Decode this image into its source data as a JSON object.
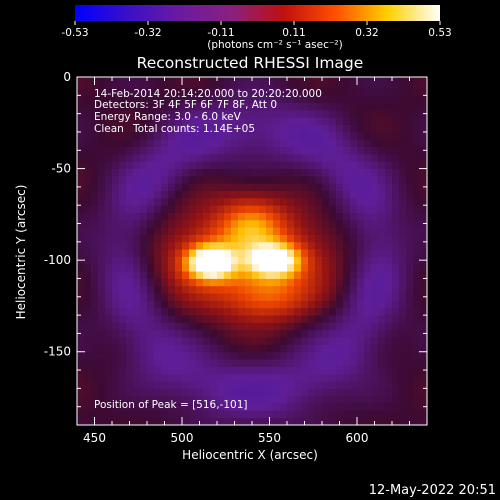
{
  "chart_data": {
    "type": "heatmap",
    "title": "Reconstructed RHESSI Image",
    "xlabel": "Heliocentric X (arcsec)",
    "ylabel": "Heliocentric Y (arcsec)",
    "xlim": [
      440,
      640
    ],
    "ylim": [
      -190,
      0
    ],
    "x_ticks": [
      450,
      500,
      550,
      600
    ],
    "y_ticks": [
      0,
      -50,
      -100,
      -150
    ],
    "colorbar": {
      "label": "(photons cm⁻² s⁻¹ asec⁻²)",
      "range": [
        -0.53,
        0.53
      ],
      "ticks": [
        "-0.53",
        "-0.32",
        "-0.11",
        "0.11",
        "0.32",
        "0.53"
      ],
      "colormap": [
        "#0000ff",
        "#3a10c8",
        "#6a1aa0",
        "#8a2080",
        "#c01010",
        "#ff5000",
        "#ffd000",
        "#ffffff"
      ]
    },
    "annotations": {
      "time_range": "14-Feb-2014 20:14:20.000 to 20:20:20.000",
      "detectors": "Detectors: 3F 4F 5F 6F 7F 8F, Att 0",
      "energy": "Energy Range: 3.0 - 6.0 keV",
      "clean_label": "Clean",
      "total_counts": "Total counts: 1.14E+05",
      "peak": "Position of Peak = [516,-101]"
    },
    "sources": [
      {
        "x": 516,
        "y": -101,
        "sx": 9,
        "sy": 6,
        "amp": 1.0
      },
      {
        "x": 553,
        "y": -100,
        "sx": 10,
        "sy": 6,
        "amp": 0.85
      },
      {
        "x": 535,
        "y": -98,
        "sx": 33,
        "sy": 20,
        "amp": 0.55
      },
      {
        "x": 540,
        "y": -80,
        "sx": 12,
        "sy": 10,
        "amp": 0.3
      },
      {
        "x": 550,
        "y": -120,
        "sx": 16,
        "sy": 9,
        "amp": 0.28
      }
    ],
    "ring": {
      "cx": 540,
      "cy": -100,
      "r": 72,
      "width": 13,
      "amp": -0.22
    }
  },
  "footer": {
    "timestamp": "12-May-2022 20:51"
  }
}
